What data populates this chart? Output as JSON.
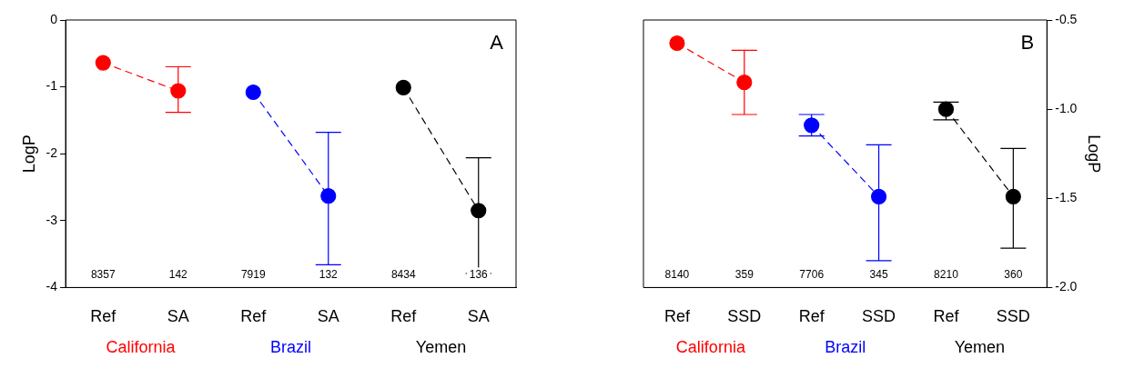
{
  "chart_data": [
    {
      "type": "line",
      "title": "A",
      "categories": [
        "Ref",
        "SA",
        "Ref",
        "SA",
        "Ref",
        "SA"
      ],
      "ylabel": "LogP",
      "ylim": [
        -4,
        0
      ],
      "yticks": [
        -4,
        -3,
        -2,
        -1,
        0
      ],
      "marker": "circle",
      "line_style": "dashed",
      "grid": false,
      "legend": false,
      "series": [
        {
          "name": "California",
          "color": "#ff0000",
          "values": [
            -0.64,
            -1.06,
            null,
            null,
            null,
            null
          ],
          "errors": [
            null,
            [
              -1.38,
              -0.7
            ],
            null,
            null,
            null,
            null
          ]
        },
        {
          "name": "Brazil",
          "color": "#0000ff",
          "values": [
            null,
            null,
            -1.08,
            -2.63,
            null,
            null
          ],
          "errors": [
            null,
            null,
            null,
            [
              -3.66,
              -1.68
            ],
            null,
            null
          ]
        },
        {
          "name": "Yemen",
          "color": "#000000",
          "values": [
            null,
            null,
            null,
            null,
            -1.01,
            -2.85
          ],
          "errors": [
            null,
            null,
            null,
            null,
            null,
            [
              -3.79,
              -2.06
            ]
          ]
        }
      ],
      "annotations": [
        "8357",
        "142",
        "7919",
        "132",
        "8434",
        "136"
      ]
    },
    {
      "type": "line",
      "title": "B",
      "categories": [
        "Ref",
        "SSD",
        "Ref",
        "SSD",
        "Ref",
        "SSD"
      ],
      "y2label": "LogP",
      "y2lim": [
        -2,
        -0.5
      ],
      "y2ticks": [
        {
          "value": -2,
          "label": "-2.0"
        },
        {
          "value": -1.5,
          "label": "-1.5"
        },
        {
          "value": -1,
          "label": "-1.0"
        },
        {
          "value": -0.5,
          "label": "-0.5"
        }
      ],
      "marker": "circle",
      "line_style": "dashed",
      "grid": false,
      "legend": false,
      "series": [
        {
          "name": "California",
          "color": "#ff0000",
          "axis": "y2",
          "values": [
            -0.63,
            -0.85,
            null,
            null,
            null,
            null
          ],
          "errors": [
            null,
            [
              -1.03,
              -0.67
            ],
            null,
            null,
            null,
            null
          ]
        },
        {
          "name": "Brazil",
          "color": "#0000ff",
          "axis": "y2",
          "values": [
            null,
            null,
            -1.09,
            -1.49,
            null,
            null
          ],
          "errors": [
            null,
            null,
            [
              -1.15,
              -1.03
            ],
            [
              -1.85,
              -1.2
            ],
            null,
            null
          ]
        },
        {
          "name": "Yemen",
          "color": "#000000",
          "axis": "y2",
          "values": [
            null,
            null,
            null,
            null,
            -1.0,
            -1.49
          ],
          "errors": [
            null,
            null,
            null,
            null,
            [
              -1.06,
              -0.96
            ],
            [
              -1.78,
              -1.22
            ]
          ]
        }
      ],
      "annotations": [
        "8140",
        "359",
        "7706",
        "345",
        "8210",
        "360"
      ]
    }
  ]
}
